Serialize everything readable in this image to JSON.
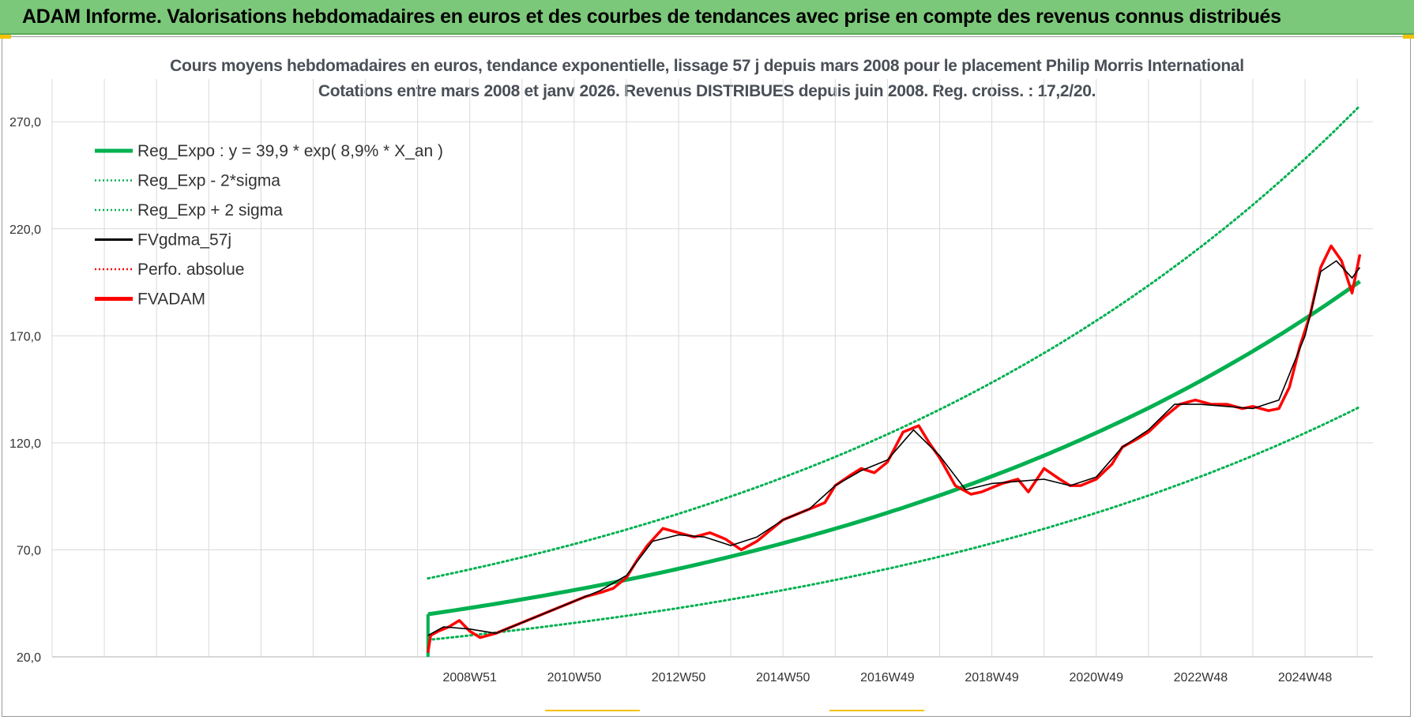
{
  "banner": {
    "title": "ADAM Informe. Valorisations hebdomadaires en euros et des courbes de tendances avec prise en compte des revenus connus distribués"
  },
  "colors": {
    "banner_bg": "#7cc87a",
    "reg_expo": "#00b050",
    "fvadam": "#ff0000",
    "fvgdma": "#000000",
    "grid": "#d9d9d9"
  },
  "chart_data": {
    "type": "line",
    "title": "Cours moyens hebdomadaires en euros, tendance exponentielle, lissage 57 j depuis mars 2008 pour le placement Philip Morris International",
    "subtitle": "Cotations entre mars 2008 et janv 2026. Revenus DISTRIBUES depuis juin 2008. Reg. croiss. : 17,2/20.",
    "xlabel": "",
    "ylabel": "",
    "ylim": [
      20,
      290
    ],
    "yticks": [
      "20,0",
      "70,0",
      "120,0",
      "170,0",
      "220,0",
      "270,0"
    ],
    "xticks": [
      "2008W51",
      "2010W50",
      "2012W50",
      "2014W50",
      "2016W49",
      "2018W49",
      "2020W49",
      "2022W48",
      "2024W48"
    ],
    "xtick_years": [
      2009.0,
      2011.0,
      2013.0,
      2015.0,
      2017.0,
      2019.0,
      2021.0,
      2023.0,
      2025.0
    ],
    "grid": true,
    "legend_position": "top-left",
    "legend": [
      {
        "label": "Reg_Expo : y = 39,9 * exp( 8,9% *  X_an )",
        "color": "#00b050",
        "style": "solid-thick"
      },
      {
        "label": "Reg_Exp - 2*sigma",
        "color": "#00b050",
        "style": "dotted"
      },
      {
        "label": "Reg_Exp + 2 sigma",
        "color": "#00b050",
        "style": "dotted"
      },
      {
        "label": "FVgdma_57j",
        "color": "#000000",
        "style": "solid"
      },
      {
        "label": "Perfo. absolue",
        "color": "#ff0000",
        "style": "dotted"
      },
      {
        "label": "FVADAM",
        "color": "#ff0000",
        "style": "solid-thick"
      }
    ],
    "reg_expo": {
      "a": 39.9,
      "rate": 0.089,
      "x_start": 2008.2,
      "x_end": 2026.05
    },
    "series": [
      {
        "name": "FVADAM",
        "x": [
          2008.2,
          2008.25,
          2008.4,
          2008.6,
          2008.8,
          2009.0,
          2009.2,
          2009.5,
          2009.8,
          2010.0,
          2010.3,
          2010.6,
          2010.9,
          2011.2,
          2011.5,
          2011.75,
          2012.0,
          2012.2,
          2012.4,
          2012.7,
          2013.0,
          2013.3,
          2013.6,
          2013.9,
          2014.2,
          2014.5,
          2014.8,
          2015.0,
          2015.2,
          2015.4,
          2015.6,
          2015.8,
          2016.0,
          2016.3,
          2016.5,
          2016.75,
          2017.0,
          2017.3,
          2017.6,
          2017.8,
          2018.0,
          2018.3,
          2018.6,
          2018.8,
          2019.0,
          2019.2,
          2019.5,
          2019.7,
          2020.0,
          2020.3,
          2020.5,
          2020.7,
          2021.0,
          2021.3,
          2021.5,
          2021.8,
          2022.0,
          2022.3,
          2022.6,
          2022.9,
          2023.2,
          2023.5,
          2023.8,
          2024.0,
          2024.3,
          2024.5,
          2024.7,
          2024.9,
          2025.1,
          2025.3,
          2025.5,
          2025.7,
          2025.9,
          2026.05
        ],
        "values": [
          22,
          30,
          32,
          34,
          37,
          32,
          29,
          31,
          34,
          36,
          39,
          42,
          45,
          48,
          50,
          52,
          57,
          65,
          72,
          80,
          78,
          76,
          78,
          75,
          70,
          74,
          80,
          84,
          86,
          88,
          90,
          92,
          100,
          105,
          108,
          106,
          111,
          125,
          128,
          120,
          113,
          100,
          96,
          97,
          99,
          101,
          103,
          97,
          108,
          103,
          100,
          100,
          103,
          110,
          118,
          122,
          125,
          132,
          138,
          140,
          138,
          138,
          136,
          137,
          135,
          136,
          146,
          165,
          180,
          202,
          212,
          205,
          190,
          208
        ]
      },
      {
        "name": "FVgdma_57j",
        "x": [
          2008.2,
          2008.5,
          2009.0,
          2009.5,
          2010.0,
          2010.5,
          2011.0,
          2011.5,
          2012.0,
          2012.5,
          2013.0,
          2013.5,
          2014.0,
          2014.5,
          2015.0,
          2015.5,
          2016.0,
          2016.5,
          2017.0,
          2017.5,
          2018.0,
          2018.5,
          2019.0,
          2019.5,
          2020.0,
          2020.5,
          2021.0,
          2021.5,
          2022.0,
          2022.5,
          2023.0,
          2023.5,
          2024.0,
          2024.5,
          2025.0,
          2025.3,
          2025.6,
          2025.9,
          2026.05
        ],
        "values": [
          30,
          34,
          33,
          31,
          36,
          41,
          46,
          51,
          58,
          74,
          77,
          76,
          72,
          76,
          84,
          89,
          100,
          107,
          112,
          126,
          114,
          98,
          101,
          102,
          103,
          100,
          104,
          118,
          126,
          138,
          138,
          137,
          136,
          140,
          170,
          200,
          205,
          197,
          202
        ]
      }
    ]
  }
}
